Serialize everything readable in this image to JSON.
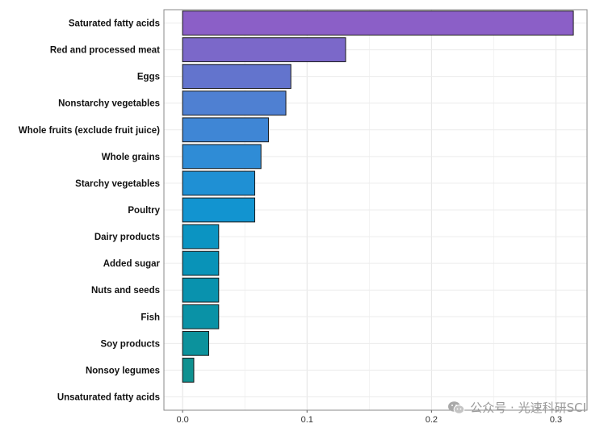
{
  "chart_data": {
    "type": "bar",
    "orientation": "horizontal",
    "title": "",
    "xlabel": "",
    "ylabel": "",
    "xlim": [
      -0.015,
      0.325
    ],
    "xticks": [
      0.0,
      0.1,
      0.2,
      0.3
    ],
    "xtick_labels": [
      "0.0",
      "0.1",
      "0.2",
      "0.3"
    ],
    "grid": true,
    "categories": [
      "Saturated fatty acids",
      "Red and processed meat",
      "Eggs",
      "Nonstarchy vegetables",
      "Whole fruits (exclude fruit juice)",
      "Whole grains",
      "Starchy vegetables",
      "Poultry",
      "Dairy products",
      "Added sugar",
      "Nuts and seeds",
      "Fish",
      "Soy products",
      "Nonsoy legumes",
      "Unsaturated fatty acids"
    ],
    "values": [
      0.314,
      0.131,
      0.087,
      0.083,
      0.069,
      0.063,
      0.058,
      0.058,
      0.029,
      0.029,
      0.029,
      0.029,
      0.021,
      0.009,
      0.0
    ],
    "colors": [
      "#8b5fc7",
      "#7b68c9",
      "#6374cd",
      "#4f80d2",
      "#3f86d5",
      "#2f8cd6",
      "#1f90d4",
      "#1294d0",
      "#0b94c2",
      "#0993b8",
      "#0992ae",
      "#0a92a6",
      "#0c929c",
      "#0f9190",
      "#13908a"
    ]
  },
  "watermark": {
    "text": "公众号 · 光速科研SCI",
    "icon": "wechat-icon"
  }
}
